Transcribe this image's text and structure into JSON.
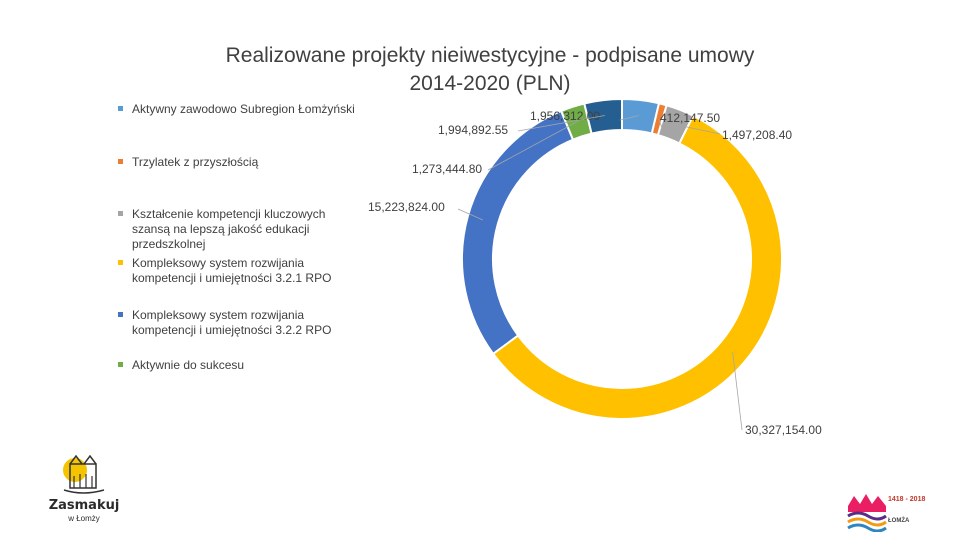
{
  "chart_data": {
    "type": "donut",
    "title": "Realizowane projekty nieiwestycyjne - podpisane umowy",
    "subtitle": "2014-2020 (PLN)",
    "legend_position": "left",
    "series": [
      {
        "name": "Aktywny zawodowo Subregion Łomżyński",
        "value": 1956312.0,
        "label": "1,956,312.00",
        "color": "#5b9bd5"
      },
      {
        "name": "Trzylatek z przyszłością",
        "value": 412147.5,
        "label": "412,147.50",
        "color": "#ed7d31"
      },
      {
        "name": "Kształcenie kompetencji kluczowych szansą na lepszą jakość edukacji przedszkolnej",
        "value": 1497208.4,
        "label": "1,497,208.40",
        "color": "#a5a5a5"
      },
      {
        "name": "Kompleksowy system rozwijania kompetencji i umiejętności 3.2.1 RPO",
        "value": 30327154.0,
        "label": "30,327,154.00",
        "color": "#ffc000"
      },
      {
        "name": "Kompleksowy system rozwijania kompetencji i umiejętności 3.2.2 RPO",
        "value": 15223824.0,
        "label": "15,223,824.00",
        "color": "#4472c4"
      },
      {
        "name": "Aktywnie do sukcesu",
        "value": 1273444.8,
        "label": "1,273,444.80",
        "color": "#70ad47"
      },
      {
        "name": "",
        "value": 1994892.55,
        "label": "1,994,892.55",
        "color": "#255e91"
      }
    ],
    "legend_items": [
      {
        "label": "Aktywny zawodowo Subregion Łomżyński",
        "color": "#5b9bd5"
      },
      {
        "label": "Trzylatek z przyszłością",
        "color": "#ed7d31"
      },
      {
        "label": "Kształcenie kompetencji kluczowych szansą na lepszą jakość edukacji przedszkolnej",
        "color": "#a5a5a5"
      },
      {
        "label": "Kompleksowy system rozwijania kompetencji i umiejętności 3.2.1 RPO",
        "color": "#ffc000"
      },
      {
        "label": "Kompleksowy system rozwijania kompetencji i umiejętności 3.2.2 RPO",
        "color": "#4472c4"
      },
      {
        "label": "Aktywnie do sukcesu",
        "color": "#70ad47"
      }
    ]
  },
  "logos": {
    "left": {
      "name": "Zasmakuj",
      "subtitle": "w Łomży"
    },
    "right": {
      "years": "1418 - 2018",
      "city": "ŁOMŻA"
    }
  }
}
